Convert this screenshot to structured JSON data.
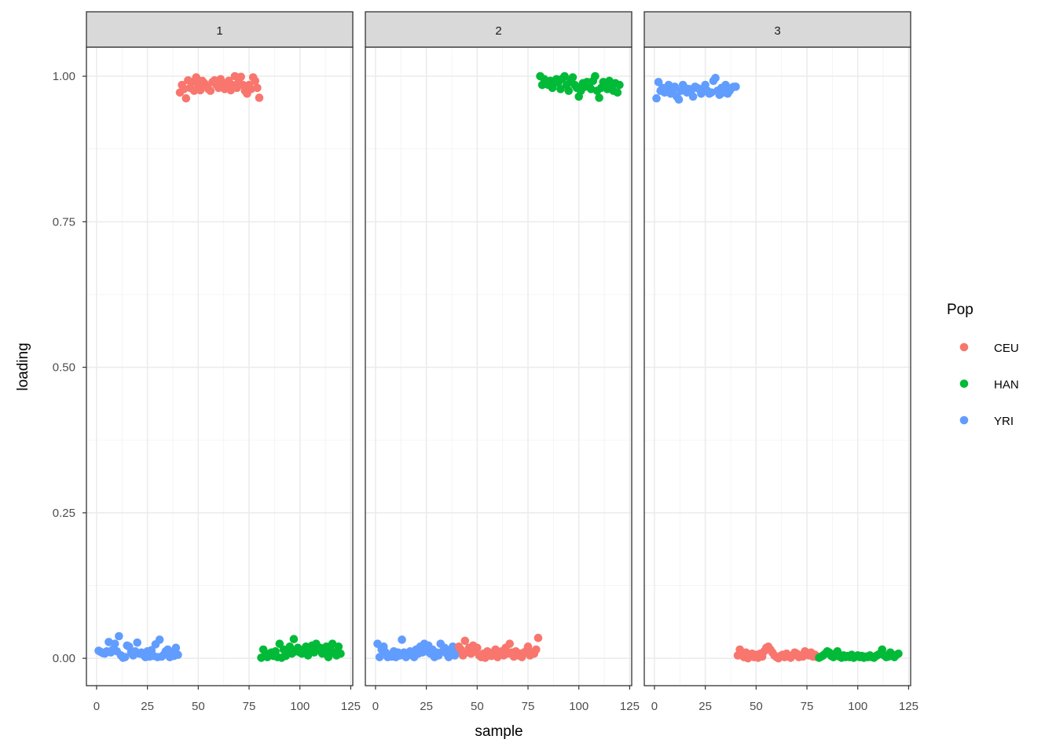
{
  "chart_data": {
    "type": "scatter",
    "xlabel": "sample",
    "ylabel": "loading",
    "xlim": [
      -5,
      126
    ],
    "ylim": [
      -0.047,
      1.05
    ],
    "x_ticks": [
      0,
      25,
      50,
      75,
      100,
      125
    ],
    "y_ticks": [
      0,
      0.25,
      0.5,
      0.75,
      1.0
    ],
    "y_tick_labels": [
      "0.00",
      "0.25",
      "0.50",
      "0.75",
      "1.00"
    ],
    "grid": true,
    "legend": {
      "title": "Pop",
      "position": "right",
      "entries": [
        "CEU",
        "HAN",
        "YRI"
      ]
    },
    "colors": {
      "CEU": "#F8766D",
      "HAN": "#00BA38",
      "YRI": "#619CFF"
    },
    "sample_ranges": {
      "YRI": [
        1,
        40
      ],
      "CEU": [
        41,
        80
      ],
      "HAN": [
        81,
        120
      ]
    },
    "facets": [
      {
        "label": "1",
        "series": [
          {
            "name": "YRI",
            "values": [
              0.013,
              0.011,
              0.009,
              0.008,
              0.012,
              0.028,
              0.01,
              0.015,
              0.025,
              0.012,
              0.038,
              0.005,
              0.001,
              0.002,
              0.022,
              0.02,
              0.01,
              0.005,
              0.012,
              0.027,
              0.008,
              0.01,
              0.006,
              0.002,
              0.012,
              0.003,
              0.014,
              0.004,
              0.024,
              0.002,
              0.032,
              0.003,
              0.006,
              0.012,
              0.015,
              0.002,
              0.01,
              0.004,
              0.018,
              0.006
            ]
          },
          {
            "name": "CEU",
            "values": [
              0.972,
              0.985,
              0.978,
              0.962,
              0.993,
              0.98,
              0.99,
              0.975,
              0.998,
              0.985,
              0.976,
              0.992,
              0.988,
              0.982,
              0.978,
              0.975,
              0.99,
              0.993,
              0.985,
              0.98,
              0.995,
              0.988,
              0.978,
              0.983,
              0.992,
              0.976,
              0.985,
              1.0,
              0.98,
              0.99,
              0.999,
              0.985,
              0.975,
              0.97,
              0.985,
              0.978,
              0.998,
              0.992,
              0.98,
              0.963
            ]
          },
          {
            "name": "HAN",
            "values": [
              0.001,
              0.015,
              0.005,
              0.002,
              0.008,
              0.01,
              0.004,
              0.012,
              0.002,
              0.025,
              0.001,
              0.015,
              0.004,
              0.01,
              0.02,
              0.008,
              0.033,
              0.012,
              0.018,
              0.01,
              0.008,
              0.015,
              0.02,
              0.005,
              0.012,
              0.022,
              0.01,
              0.025,
              0.015,
              0.018,
              0.008,
              0.012,
              0.02,
              0.002,
              0.015,
              0.025,
              0.01,
              0.005,
              0.02,
              0.008
            ]
          }
        ]
      },
      {
        "label": "2",
        "series": [
          {
            "name": "YRI",
            "values": [
              0.025,
              0.002,
              0.015,
              0.02,
              0.01,
              0.002,
              0.005,
              0.003,
              0.012,
              0.002,
              0.01,
              0.005,
              0.032,
              0.01,
              0.002,
              0.008,
              0.012,
              0.005,
              0.002,
              0.015,
              0.008,
              0.02,
              0.01,
              0.025,
              0.012,
              0.022,
              0.008,
              0.015,
              0.002,
              0.01,
              0.005,
              0.025,
              0.012,
              0.018,
              0.008,
              0.002,
              0.015,
              0.02,
              0.005,
              0.01
            ]
          },
          {
            "name": "CEU",
            "values": [
              0.02,
              0.015,
              0.005,
              0.03,
              0.01,
              0.018,
              0.008,
              0.022,
              0.012,
              0.018,
              0.005,
              0.002,
              0.008,
              0.001,
              0.012,
              0.01,
              0.004,
              0.008,
              0.015,
              0.002,
              0.01,
              0.012,
              0.005,
              0.018,
              0.008,
              0.025,
              0.01,
              0.003,
              0.012,
              0.005,
              0.008,
              0.002,
              0.01,
              0.012,
              0.02,
              0.005,
              0.01,
              0.008,
              0.015,
              0.035
            ]
          },
          {
            "name": "HAN",
            "values": [
              1.0,
              0.985,
              0.995,
              0.99,
              0.985,
              0.992,
              0.98,
              0.988,
              0.995,
              0.99,
              0.978,
              0.996,
              1.0,
              0.985,
              0.975,
              0.992,
              0.998,
              0.985,
              0.98,
              0.965,
              0.975,
              0.988,
              0.982,
              0.99,
              0.985,
              0.978,
              0.992,
              1.0,
              0.975,
              0.963,
              0.98,
              0.99,
              0.985,
              0.978,
              0.992,
              0.985,
              0.975,
              0.988,
              0.972,
              0.985
            ]
          }
        ]
      },
      {
        "label": "3",
        "series": [
          {
            "name": "YRI",
            "values": [
              0.962,
              0.99,
              0.975,
              0.98,
              0.972,
              0.978,
              0.985,
              0.97,
              0.975,
              0.982,
              0.965,
              0.96,
              0.975,
              0.985,
              0.98,
              0.972,
              0.978,
              0.975,
              0.965,
              0.982,
              0.98,
              0.978,
              0.97,
              0.975,
              0.985,
              0.975,
              0.97,
              0.972,
              0.992,
              0.997,
              0.975,
              0.968,
              0.98,
              0.972,
              0.985,
              0.97,
              0.975,
              0.98,
              0.982,
              0.982
            ]
          },
          {
            "name": "CEU",
            "values": [
              0.005,
              0.015,
              0.008,
              0.002,
              0.01,
              0.0,
              0.005,
              0.008,
              0.002,
              0.006,
              0.001,
              0.008,
              0.003,
              0.012,
              0.018,
              0.02,
              0.015,
              0.01,
              0.005,
              0.002,
              0.0,
              0.004,
              0.006,
              0.002,
              0.008,
              0.003,
              0.001,
              0.005,
              0.01,
              0.008,
              0.002,
              0.005,
              0.003,
              0.012,
              0.008,
              0.005,
              0.01,
              0.003,
              0.006,
              0.002
            ]
          },
          {
            "name": "HAN",
            "values": [
              0.001,
              0.003,
              0.005,
              0.008,
              0.012,
              0.01,
              0.004,
              0.002,
              0.008,
              0.012,
              0.003,
              0.001,
              0.005,
              0.002,
              0.004,
              0.002,
              0.006,
              0.001,
              0.003,
              0.005,
              0.002,
              0.004,
              0.001,
              0.003,
              0.002,
              0.005,
              0.002,
              0.001,
              0.004,
              0.006,
              0.008,
              0.015,
              0.005,
              0.002,
              0.003,
              0.01,
              0.004,
              0.002,
              0.006,
              0.008
            ]
          }
        ]
      }
    ]
  }
}
